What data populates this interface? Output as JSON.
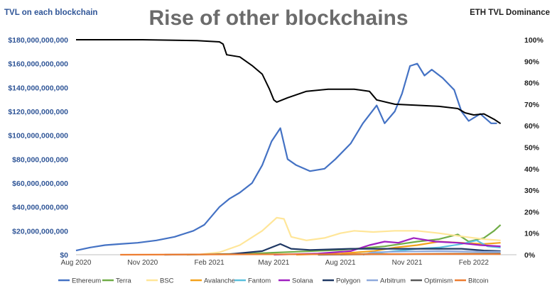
{
  "chart_data": {
    "type": "line",
    "title": "Rise of other blockchains",
    "ylabel": "TVL on each blockchain",
    "y2label": "ETH TVL Dominance",
    "ylim": [
      0,
      180000000000
    ],
    "y2lim": [
      0,
      100
    ],
    "y_ticks": [
      "$0",
      "$20,000,000,000",
      "$40,000,000,000",
      "$60,000,000,000",
      "$80,000,000,000",
      "$100,000,000,000",
      "$120,000,000,000",
      "$140,000,000,000",
      "$160,000,000,000",
      "$180,000,000,000"
    ],
    "y2_ticks": [
      "0%",
      "10%",
      "20%",
      "30%",
      "40%",
      "50%",
      "60%",
      "70%",
      "80%",
      "90%",
      "100%"
    ],
    "x_ticks": [
      "Aug 2020",
      "Nov 2020",
      "Feb 2021",
      "May 2021",
      "Aug 2021",
      "Nov 2021",
      "Feb 2022"
    ],
    "x_tick_dates": [
      "2020-08-01",
      "2020-11-01",
      "2021-02-01",
      "2021-05-01",
      "2021-08-01",
      "2021-11-01",
      "2022-02-01"
    ],
    "xlim": [
      "2020-08-01",
      "2022-04-01"
    ],
    "grid": "none",
    "legend_position": "bottom",
    "series": [
      {
        "name": "Ethereum",
        "color": "#4472c4",
        "axis": "left",
        "points": [
          [
            "2020-08-01",
            3.5
          ],
          [
            "2020-08-20",
            6
          ],
          [
            "2020-09-10",
            8
          ],
          [
            "2020-10-01",
            9
          ],
          [
            "2020-10-25",
            10
          ],
          [
            "2020-11-20",
            12
          ],
          [
            "2020-12-15",
            15
          ],
          [
            "2021-01-10",
            20
          ],
          [
            "2021-01-25",
            25
          ],
          [
            "2021-02-15",
            40
          ],
          [
            "2021-03-01",
            47
          ],
          [
            "2021-03-15",
            52
          ],
          [
            "2021-04-01",
            60
          ],
          [
            "2021-04-15",
            75
          ],
          [
            "2021-04-28",
            95
          ],
          [
            "2021-05-10",
            106
          ],
          [
            "2021-05-20",
            80
          ],
          [
            "2021-06-01",
            75
          ],
          [
            "2021-06-20",
            70
          ],
          [
            "2021-07-10",
            72
          ],
          [
            "2021-07-25",
            80
          ],
          [
            "2021-08-15",
            93
          ],
          [
            "2021-09-01",
            110
          ],
          [
            "2021-09-20",
            125
          ],
          [
            "2021-10-01",
            110
          ],
          [
            "2021-10-15",
            120
          ],
          [
            "2021-10-25",
            135
          ],
          [
            "2021-11-05",
            158
          ],
          [
            "2021-11-15",
            160
          ],
          [
            "2021-11-25",
            150
          ],
          [
            "2021-12-05",
            155
          ],
          [
            "2021-12-20",
            148
          ],
          [
            "2022-01-05",
            138
          ],
          [
            "2022-01-15",
            120
          ],
          [
            "2022-01-25",
            112
          ],
          [
            "2022-02-10",
            118
          ],
          [
            "2022-02-25",
            110
          ],
          [
            "2022-03-05",
            110
          ]
        ]
      },
      {
        "name": "Terra",
        "color": "#70ad47",
        "axis": "left",
        "points": [
          [
            "2021-01-01",
            0
          ],
          [
            "2021-04-01",
            1
          ],
          [
            "2021-06-01",
            2.5
          ],
          [
            "2021-08-01",
            4
          ],
          [
            "2021-10-01",
            7
          ],
          [
            "2021-11-15",
            11
          ],
          [
            "2021-12-15",
            13
          ],
          [
            "2022-01-10",
            17
          ],
          [
            "2022-01-25",
            11
          ],
          [
            "2022-02-15",
            14
          ],
          [
            "2022-03-01",
            20
          ],
          [
            "2022-03-10",
            25
          ]
        ]
      },
      {
        "name": "BSC",
        "color": "#ffe699",
        "axis": "left",
        "points": [
          [
            "2021-01-15",
            0
          ],
          [
            "2021-02-15",
            2
          ],
          [
            "2021-03-15",
            8
          ],
          [
            "2021-04-15",
            20
          ],
          [
            "2021-05-05",
            31
          ],
          [
            "2021-05-15",
            30
          ],
          [
            "2021-05-25",
            15
          ],
          [
            "2021-06-15",
            12
          ],
          [
            "2021-07-10",
            14
          ],
          [
            "2021-08-01",
            18
          ],
          [
            "2021-08-20",
            20
          ],
          [
            "2021-09-15",
            19
          ],
          [
            "2021-10-15",
            20
          ],
          [
            "2021-11-15",
            20
          ],
          [
            "2021-12-15",
            18
          ],
          [
            "2022-01-20",
            15
          ],
          [
            "2022-02-15",
            13
          ],
          [
            "2022-03-10",
            12
          ]
        ]
      },
      {
        "name": "Avalanche",
        "color": "#f4a21c",
        "axis": "left",
        "points": [
          [
            "2021-06-01",
            0
          ],
          [
            "2021-08-01",
            1
          ],
          [
            "2021-09-15",
            3
          ],
          [
            "2021-10-15",
            6
          ],
          [
            "2021-11-15",
            8
          ],
          [
            "2021-12-15",
            11
          ],
          [
            "2022-01-15",
            10
          ],
          [
            "2022-02-15",
            9
          ],
          [
            "2022-03-10",
            10
          ]
        ]
      },
      {
        "name": "Fantom",
        "color": "#5bc0de",
        "axis": "left",
        "points": [
          [
            "2021-08-01",
            0
          ],
          [
            "2021-09-15",
            1
          ],
          [
            "2021-10-15",
            3
          ],
          [
            "2021-11-15",
            5
          ],
          [
            "2021-12-15",
            6
          ],
          [
            "2022-01-15",
            9
          ],
          [
            "2022-02-05",
            12
          ],
          [
            "2022-02-20",
            7
          ],
          [
            "2022-03-10",
            6
          ]
        ]
      },
      {
        "name": "Solana",
        "color": "#a020c0",
        "axis": "left",
        "points": [
          [
            "2021-05-01",
            0
          ],
          [
            "2021-07-01",
            1
          ],
          [
            "2021-08-15",
            3
          ],
          [
            "2021-09-10",
            8
          ],
          [
            "2021-10-01",
            11
          ],
          [
            "2021-10-20",
            10
          ],
          [
            "2021-11-10",
            14
          ],
          [
            "2021-12-10",
            11
          ],
          [
            "2022-01-10",
            10
          ],
          [
            "2022-02-10",
            8
          ],
          [
            "2022-03-10",
            7
          ]
        ]
      },
      {
        "name": "Polygon",
        "color": "#1f3864",
        "axis": "left",
        "points": [
          [
            "2020-12-01",
            0
          ],
          [
            "2021-03-01",
            0.5
          ],
          [
            "2021-04-15",
            3
          ],
          [
            "2021-05-10",
            9
          ],
          [
            "2021-05-25",
            5
          ],
          [
            "2021-06-20",
            4
          ],
          [
            "2021-08-15",
            5
          ],
          [
            "2021-10-15",
            5
          ],
          [
            "2021-12-01",
            5
          ],
          [
            "2022-01-15",
            5
          ],
          [
            "2022-02-15",
            3.5
          ],
          [
            "2022-03-10",
            3
          ]
        ]
      },
      {
        "name": "Arbitrum",
        "color": "#8fa9dc",
        "axis": "left",
        "points": [
          [
            "2021-09-01",
            0
          ],
          [
            "2021-09-15",
            2
          ],
          [
            "2021-10-15",
            2.5
          ],
          [
            "2021-12-15",
            3
          ],
          [
            "2022-02-15",
            2.5
          ],
          [
            "2022-03-10",
            2.5
          ]
        ]
      },
      {
        "name": "Optimism",
        "color": "#595959",
        "axis": "left",
        "points": [
          [
            "2021-07-01",
            0
          ],
          [
            "2021-10-15",
            0.5
          ],
          [
            "2021-12-15",
            0.8
          ],
          [
            "2022-03-10",
            1
          ]
        ]
      },
      {
        "name": "Bitcoin",
        "color": "#ed7d31",
        "axis": "left",
        "points": [
          [
            "2020-10-01",
            0
          ],
          [
            "2021-03-01",
            0.3
          ],
          [
            "2021-08-01",
            0.4
          ],
          [
            "2022-01-01",
            0.6
          ],
          [
            "2022-03-10",
            0.5
          ]
        ]
      },
      {
        "name": "",
        "color": "#000000",
        "axis": "right",
        "points": [
          [
            "2020-08-01",
            100
          ],
          [
            "2020-11-01",
            100
          ],
          [
            "2021-01-15",
            99.6
          ],
          [
            "2021-02-15",
            99
          ],
          [
            "2021-02-20",
            98
          ],
          [
            "2021-02-25",
            93
          ],
          [
            "2021-03-15",
            92
          ],
          [
            "2021-04-01",
            88
          ],
          [
            "2021-04-15",
            84
          ],
          [
            "2021-04-25",
            77
          ],
          [
            "2021-05-01",
            72
          ],
          [
            "2021-05-05",
            71
          ],
          [
            "2021-05-20",
            73
          ],
          [
            "2021-06-15",
            76
          ],
          [
            "2021-07-15",
            77
          ],
          [
            "2021-08-20",
            77
          ],
          [
            "2021-09-10",
            76
          ],
          [
            "2021-09-20",
            72
          ],
          [
            "2021-10-15",
            70
          ],
          [
            "2021-11-15",
            69.5
          ],
          [
            "2021-12-15",
            69
          ],
          [
            "2022-01-10",
            68
          ],
          [
            "2022-01-20",
            66
          ],
          [
            "2022-02-01",
            65
          ],
          [
            "2022-02-15",
            65.5
          ],
          [
            "2022-03-01",
            63
          ],
          [
            "2022-03-10",
            61
          ]
        ]
      }
    ]
  }
}
